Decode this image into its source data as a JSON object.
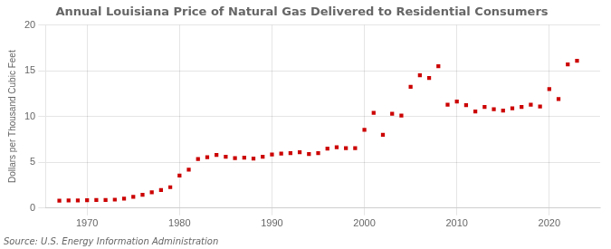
{
  "chart_data": {
    "type": "scatter",
    "title": "Annual Louisiana Price of Natural Gas Delivered to Residential Consumers",
    "ylabel": "Dollars per Thousand Cubic Feet",
    "source": "Source: U.S. Energy Information Administration",
    "x": [
      1967,
      1968,
      1969,
      1970,
      1971,
      1972,
      1973,
      1974,
      1975,
      1976,
      1977,
      1978,
      1979,
      1980,
      1981,
      1982,
      1983,
      1984,
      1985,
      1986,
      1987,
      1988,
      1989,
      1990,
      1991,
      1992,
      1993,
      1994,
      1995,
      1996,
      1997,
      1998,
      1999,
      2000,
      2001,
      2002,
      2003,
      2004,
      2005,
      2006,
      2007,
      2008,
      2009,
      2010,
      2011,
      2012,
      2013,
      2014,
      2015,
      2016,
      2017,
      2018,
      2019,
      2020,
      2021,
      2022,
      2023
    ],
    "values": [
      0.82,
      0.83,
      0.84,
      0.85,
      0.88,
      0.89,
      0.92,
      1.02,
      1.22,
      1.45,
      1.72,
      1.98,
      2.28,
      3.55,
      4.2,
      5.35,
      5.55,
      5.8,
      5.6,
      5.45,
      5.5,
      5.42,
      5.6,
      5.85,
      5.95,
      6.0,
      6.1,
      5.9,
      6.0,
      6.5,
      6.65,
      6.55,
      6.55,
      8.55,
      10.4,
      8.0,
      10.3,
      10.1,
      13.25,
      14.5,
      14.2,
      15.5,
      11.3,
      11.65,
      11.25,
      10.55,
      11.05,
      10.8,
      10.65,
      10.9,
      11.05,
      11.3,
      11.1,
      13.0,
      11.9,
      15.7,
      16.1
    ],
    "color": "#cc0000",
    "marker": "square",
    "grid": true,
    "xlim": [
      1965.5,
      2025.5
    ],
    "xticks": [
      1970,
      1980,
      1990,
      2000,
      2010,
      2020
    ],
    "ylim": [
      0,
      20
    ],
    "yticks": [
      0,
      5,
      10,
      15,
      20
    ]
  }
}
